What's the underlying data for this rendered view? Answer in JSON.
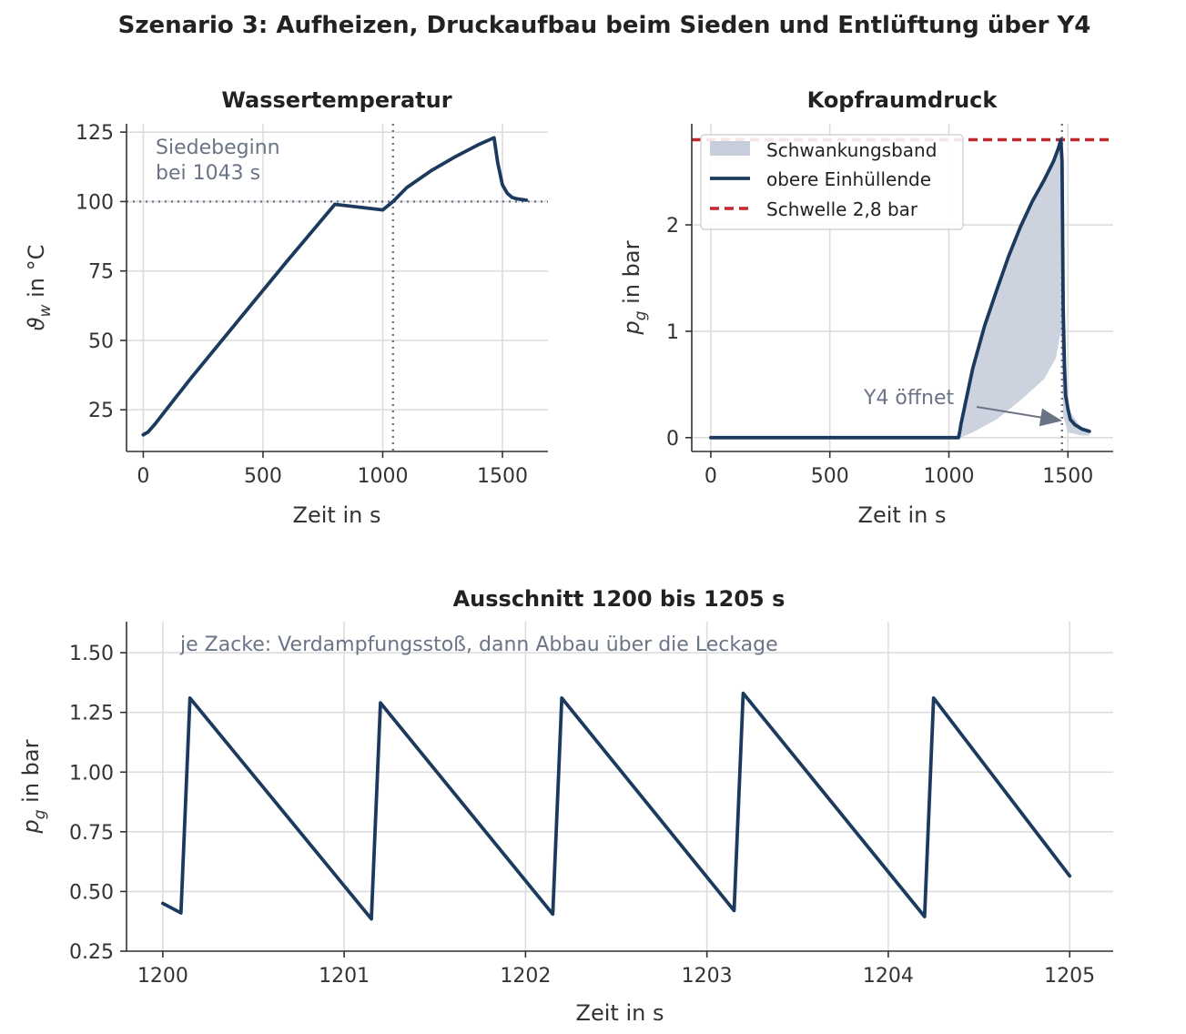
{
  "suptitle": "Szenario 3: Aufheizen, Druckaufbau beim Sieden und Entlüftung über Y4",
  "colors": {
    "series": "#1c3a5e",
    "band": "#c6cedb",
    "threshold": "#c0282d",
    "marker": "#6b7487",
    "grid": "#dddddd",
    "annotation": "#6b7487"
  },
  "panels": {
    "temperature": {
      "title": "Wassertemperatur",
      "xlabel": "Zeit in s",
      "ylabel_main": "ϑ",
      "ylabel_sub": "w",
      "ylabel_rest": " in °C",
      "annotation_line1": "Siedebeginn",
      "annotation_line2": "bei 1043 s"
    },
    "pressure": {
      "title": "Kopfraumdruck",
      "xlabel": "Zeit in s",
      "ylabel_main": "p",
      "ylabel_sub": "g",
      "ylabel_rest": " in bar",
      "annotation": "Y4 öffnet",
      "legend": {
        "band": "Schwankungsband",
        "envelope": "obere Einhüllende",
        "threshold": "Schwelle 2,8 bar"
      }
    },
    "zoom": {
      "title": "Ausschnitt 1200 bis 1205 s",
      "xlabel": "Zeit in s",
      "ylabel_main": "p",
      "ylabel_sub": "g",
      "ylabel_rest": " in bar",
      "annotation": "je Zacke: Verdampfungsstoß, dann Abbau über die Leckage"
    }
  },
  "chart_data": [
    {
      "id": "temperature",
      "type": "line",
      "title": "Wassertemperatur",
      "xlabel": "Zeit in s",
      "ylabel": "ϑw in °C",
      "xlim": [
        -70,
        1690
      ],
      "ylim": [
        10,
        128
      ],
      "xticks": [
        0,
        500,
        1000,
        1500
      ],
      "yticks": [
        25,
        50,
        75,
        100,
        125
      ],
      "grid": true,
      "boiling_start_s": 1043,
      "boiling_temp_c": 100,
      "series": [
        {
          "x": [
            0,
            20,
            50,
            100,
            200,
            400,
            600,
            800,
            1000,
            1043,
            1100,
            1200,
            1300,
            1400,
            1465,
            1480,
            1500,
            1520,
            1540,
            1560,
            1575,
            1600
          ],
          "y": [
            16,
            17,
            20,
            25.5,
            36.5,
            57.5,
            78.5,
            99,
            97,
            100,
            105,
            111,
            116,
            120.5,
            123,
            114,
            106,
            103,
            101.5,
            101,
            100.8,
            100.5
          ]
        }
      ]
    },
    {
      "id": "pressure",
      "type": "line",
      "title": "Kopfraumdruck",
      "xlabel": "Zeit in s",
      "ylabel": "pg in bar",
      "xlim": [
        -80,
        1690
      ],
      "ylim": [
        -0.13,
        2.95
      ],
      "xticks": [
        0,
        500,
        1000,
        1500
      ],
      "yticks": [
        0,
        1,
        2
      ],
      "grid": true,
      "legend_position": "upper left",
      "threshold_bar": 2.8,
      "valve_open_s": 1475,
      "envelope": {
        "name": "obere Einhüllende",
        "x": [
          0,
          1040,
          1045,
          1050,
          1100,
          1150,
          1200,
          1250,
          1300,
          1350,
          1400,
          1440,
          1460,
          1470,
          1475,
          1480,
          1485,
          1490,
          1500,
          1510,
          1530,
          1560,
          1590
        ],
        "y": [
          0,
          0,
          0.05,
          0.12,
          0.65,
          1.05,
          1.38,
          1.7,
          1.98,
          2.22,
          2.42,
          2.6,
          2.72,
          2.8,
          2.6,
          1.2,
          0.7,
          0.4,
          0.27,
          0.17,
          0.12,
          0.08,
          0.06
        ]
      },
      "band": {
        "name": "Schwankungsband",
        "x": [
          1040,
          1050,
          1100,
          1200,
          1300,
          1400,
          1450,
          1470,
          1480,
          1500,
          1560,
          1590
        ],
        "upper": [
          0,
          0.12,
          0.65,
          1.38,
          1.98,
          2.42,
          2.65,
          2.8,
          1.2,
          0.27,
          0.08,
          0.06
        ],
        "lower": [
          0,
          0,
          0.05,
          0.17,
          0.35,
          0.55,
          0.75,
          1.0,
          0.2,
          0.05,
          0.02,
          0.02
        ]
      }
    },
    {
      "id": "zoom",
      "type": "line",
      "title": "Ausschnitt 1200 bis 1205 s",
      "xlabel": "Zeit in s",
      "ylabel": "pg in bar",
      "xlim": [
        1199.8,
        1205.24
      ],
      "ylim": [
        0.25,
        1.63
      ],
      "xticks": [
        1200,
        1201,
        1202,
        1203,
        1204,
        1205
      ],
      "yticks": [
        0.25,
        0.5,
        0.75,
        1.0,
        1.25,
        1.5
      ],
      "grid": true,
      "series": [
        {
          "name": "",
          "x": [
            1200.0,
            1200.1,
            1200.15,
            1201.15,
            1201.2,
            1202.15,
            1202.2,
            1203.15,
            1203.2,
            1204.2,
            1204.25,
            1205.0
          ],
          "y": [
            0.45,
            0.41,
            1.31,
            0.385,
            1.29,
            0.405,
            1.31,
            0.42,
            1.33,
            0.395,
            1.31,
            0.565
          ]
        }
      ]
    }
  ]
}
